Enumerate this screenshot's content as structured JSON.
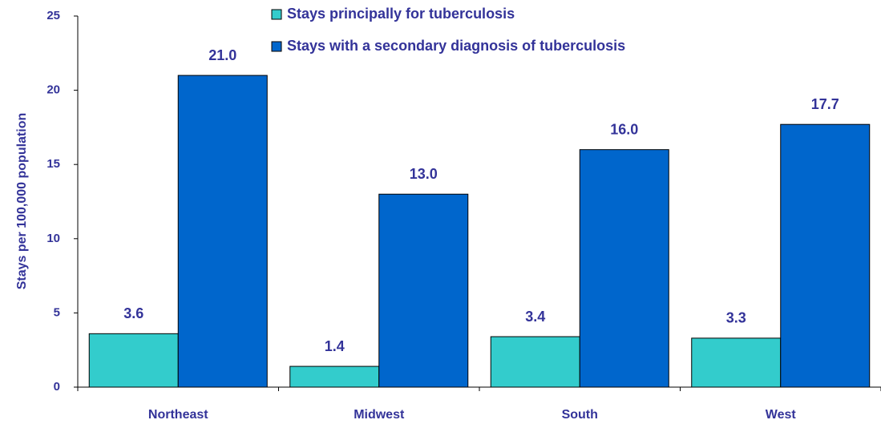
{
  "chart_data": {
    "type": "bar",
    "y_label": "Stays per 100,000 population",
    "categories": [
      "Northeast",
      "Midwest",
      "South",
      "West"
    ],
    "series": [
      {
        "name": "Stays principally for tuberculosis",
        "color": "#33cccc",
        "values": [
          3.6,
          1.4,
          3.4,
          3.3
        ],
        "value_labels": [
          "3.6",
          "1.4",
          "3.4",
          "3.3"
        ]
      },
      {
        "name": "Stays with a secondary diagnosis of tuberculosis",
        "color": "#0066cc",
        "values": [
          21.0,
          13.0,
          16.0,
          17.7
        ],
        "value_labels": [
          "21.0",
          "13.0",
          "16.0",
          "17.7"
        ]
      }
    ],
    "ylim": [
      0,
      25
    ],
    "yticks": [
      0,
      5,
      10,
      15,
      20,
      25
    ],
    "grid": false
  }
}
